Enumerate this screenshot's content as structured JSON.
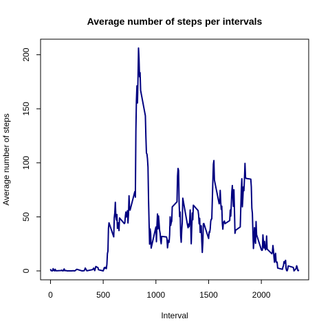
{
  "chart_data": {
    "type": "line",
    "title": "Average number of steps per intervals",
    "xlabel": "Interval",
    "ylabel": "Average number of steps",
    "x": [
      0,
      5,
      10,
      15,
      20,
      25,
      30,
      35,
      40,
      45,
      50,
      55,
      100,
      105,
      110,
      115,
      120,
      125,
      130,
      135,
      140,
      145,
      150,
      155,
      200,
      215,
      230,
      250,
      300,
      320,
      330,
      345,
      400,
      410,
      420,
      430,
      440,
      450,
      455,
      500,
      505,
      510,
      515,
      520,
      525,
      530,
      535,
      540,
      545,
      550,
      555,
      600,
      605,
      610,
      615,
      620,
      625,
      630,
      635,
      640,
      645,
      650,
      655,
      700,
      705,
      710,
      715,
      720,
      725,
      730,
      735,
      740,
      745,
      750,
      755,
      800,
      805,
      810,
      815,
      820,
      825,
      830,
      835,
      840,
      845,
      850,
      855,
      900,
      905,
      910,
      915,
      920,
      925,
      930,
      935,
      940,
      945,
      950,
      955,
      1000,
      1005,
      1010,
      1015,
      1020,
      1025,
      1030,
      1035,
      1040,
      1045,
      1050,
      1055,
      1100,
      1105,
      1110,
      1115,
      1120,
      1125,
      1130,
      1135,
      1140,
      1145,
      1150,
      1155,
      1200,
      1205,
      1210,
      1215,
      1220,
      1225,
      1230,
      1235,
      1240,
      1245,
      1250,
      1255,
      1300,
      1305,
      1310,
      1315,
      1320,
      1325,
      1330,
      1335,
      1340,
      1345,
      1350,
      1355,
      1400,
      1405,
      1410,
      1415,
      1420,
      1425,
      1430,
      1435,
      1440,
      1445,
      1450,
      1455,
      1500,
      1505,
      1510,
      1515,
      1520,
      1525,
      1530,
      1535,
      1540,
      1545,
      1550,
      1555,
      1600,
      1605,
      1610,
      1615,
      1620,
      1625,
      1630,
      1635,
      1640,
      1645,
      1650,
      1655,
      1700,
      1705,
      1710,
      1715,
      1720,
      1725,
      1730,
      1735,
      1740,
      1745,
      1750,
      1755,
      1800,
      1805,
      1810,
      1815,
      1820,
      1825,
      1830,
      1835,
      1840,
      1845,
      1850,
      1855,
      1900,
      1905,
      1910,
      1915,
      1920,
      1925,
      1930,
      1935,
      1940,
      1945,
      1950,
      1955,
      2000,
      2005,
      2010,
      2015,
      2020,
      2025,
      2030,
      2035,
      2040,
      2045,
      2050,
      2055,
      2100,
      2105,
      2110,
      2115,
      2120,
      2125,
      2130,
      2135,
      2140,
      2145,
      2150,
      2155,
      2200,
      2205,
      2210,
      2215,
      2220,
      2225,
      2230,
      2235,
      2240,
      2245,
      2250,
      2255,
      2300,
      2305,
      2310,
      2315,
      2320,
      2325,
      2330,
      2335,
      2340,
      2345,
      2350,
      2355
    ],
    "series": [
      {
        "name": "steps",
        "color": "#000080",
        "values": [
          1.7,
          0.3,
          0.1,
          0.2,
          0.1,
          2.1,
          0.5,
          0.9,
          0,
          1.5,
          0.3,
          0.1,
          0.3,
          0.7,
          0.2,
          0.3,
          0,
          1.1,
          1.8,
          0.2,
          0.2,
          0.4,
          0.3,
          0,
          0,
          0.2,
          0,
          1.5,
          0,
          0.2,
          2.6,
          0.1,
          1.2,
          2.6,
          0.3,
          4.1,
          3.5,
          3.1,
          1.1,
          0,
          1.5,
          3,
          2.2,
          3.3,
          3.0,
          2.1,
          6.1,
          16,
          18.3,
          39.5,
          44.5,
          31.5,
          49.3,
          53.8,
          63.5,
          50,
          47.1,
          52.2,
          39.3,
          44.2,
          44.5,
          37.3,
          49.0,
          43.8,
          44.4,
          50.5,
          54.5,
          49.9,
          51,
          55.7,
          44.3,
          52.3,
          69.5,
          57.8,
          56.2,
          73.4,
          68.2,
          129.4,
          157.5,
          171.2,
          155.4,
          177.3,
          206.2,
          195.9,
          179.6,
          183.4,
          167.0,
          143.5,
          124.0,
          109.1,
          108.1,
          103.7,
          95.9,
          66.2,
          45.2,
          24.8,
          38.8,
          35.0,
          21.1,
          40.6,
          27.0,
          42.4,
          52.7,
          38.9,
          50.8,
          44.3,
          37.4,
          34.7,
          28.3,
          25.1,
          31.9,
          31.4,
          29.7,
          21.3,
          25.5,
          28.4,
          26.5,
          33.4,
          50.0,
          42.0,
          44.6,
          46.0,
          59.2,
          63.9,
          87.7,
          94.8,
          92.8,
          63.4,
          50.2,
          54.5,
          32.4,
          26.5,
          37.7,
          45.1,
          67.3,
          42.3,
          39.9,
          43.3,
          41.0,
          46.2,
          56.4,
          42.8,
          25.1,
          39.9,
          53.5,
          47.3,
          60.8,
          55.8,
          51.9,
          43.6,
          48.7,
          35.5,
          37.5,
          41.8,
          27.5,
          17.1,
          26.1,
          43.6,
          43.8,
          30.0,
          36.1,
          35.5,
          38.8,
          46.0,
          47.8,
          48.1,
          65.3,
          82.9,
          98.7,
          102.1,
          84.0,
          62.1,
          64.1,
          74.5,
          63.2,
          56.9,
          59.8,
          43.9,
          38.6,
          44.7,
          45.5,
          46.2,
          43.7,
          46.6,
          56.3,
          50.7,
          61.2,
          73.4,
          79.0,
          68.9,
          59.7,
          75.1,
          56.5,
          34.8,
          37.5,
          40.7,
          58.0,
          74.7,
          85.3,
          59.3,
          67.8,
          77.7,
          74.2,
          85.3,
          99.5,
          86.6,
          85.6,
          84.9,
          77.8,
          58.0,
          53.4,
          36.3,
          20.7,
          27.4,
          40.0,
          30.2,
          25.5,
          45.7,
          33.5,
          19.6,
          19.0,
          19.3,
          33.3,
          26.8,
          21.2,
          27.3,
          21.3,
          19.5,
          21.3,
          32.3,
          20.2,
          15.9,
          17.2,
          23.5,
          19.2,
          12.5,
          8.0,
          14.7,
          16.3,
          8.7,
          7.8,
          8.1,
          2.6,
          1.5,
          3.7,
          4.8,
          8.5,
          7.1,
          8.7,
          9.8,
          2.2,
          0.3,
          0.1,
          1.6,
          4.6,
          3.3,
          2.8,
          0,
          0.8,
          1.0,
          1.6,
          2.6,
          4.7,
          3.3,
          0.6,
          0.2,
          1.1
        ]
      }
    ],
    "xlim": [
      -94.2,
      2449.2
    ],
    "ylim": [
      -8.25,
      214.4
    ],
    "xticks": [
      0,
      500,
      1000,
      1500,
      2000
    ],
    "yticks": [
      0,
      50,
      100,
      150,
      200
    ]
  }
}
